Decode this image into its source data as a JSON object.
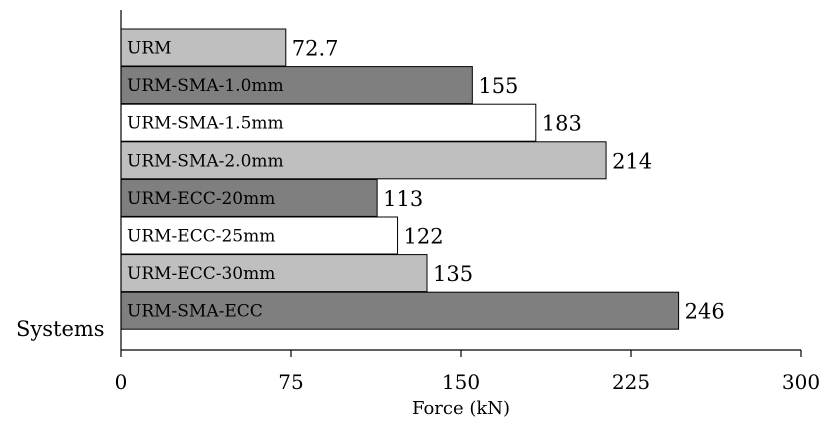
{
  "chart_data": {
    "type": "bar",
    "orientation": "horizontal",
    "categories": [
      "URM",
      "URM-SMA-1.0mm",
      "URM-SMA-1.5mm",
      "URM-SMA-2.0mm",
      "URM-ECC-20mm",
      "URM-ECC-25mm",
      "URM-ECC-30mm",
      "URM-SMA-ECC"
    ],
    "values": [
      72.7,
      155,
      183,
      214,
      113,
      122,
      135,
      246
    ],
    "value_labels": [
      "72.7",
      "155",
      "183",
      "214",
      "113",
      "122",
      "135",
      "246"
    ],
    "bar_colors": [
      "#bfbfbf",
      "#7f7f7f",
      "#ffffff",
      "#bfbfbf",
      "#7f7f7f",
      "#ffffff",
      "#bfbfbf",
      "#7f7f7f"
    ],
    "xlabel": "Force (kN)",
    "ylabel": "Systems",
    "xlim": [
      0,
      300
    ],
    "xticks": [
      0,
      75,
      150,
      225,
      300
    ],
    "grid": false,
    "legend": "none"
  }
}
